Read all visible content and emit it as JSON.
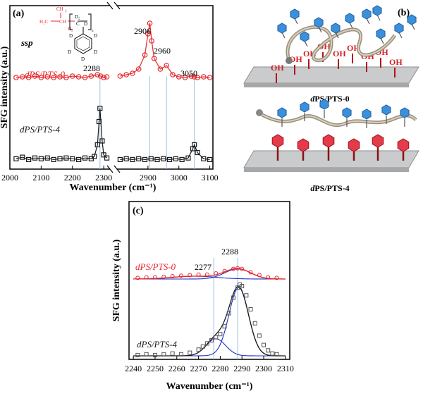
{
  "panel_labels": {
    "a": "(a)",
    "b": "(b)",
    "c": "(c)"
  },
  "colors": {
    "red": "#e8262b",
    "black": "#1a1a1a",
    "blue_line": "#9ec2e3",
    "fit_blue": "#1c2fbf"
  },
  "panel_a": {
    "polarization": "ssp",
    "series_top": "dPS/PTS-0",
    "series_bottom": "dPS/PTS-4",
    "peaks": [
      "2288",
      "2906",
      "2960",
      "3050"
    ]
  },
  "panel_b": {
    "caption_top": "dPS/PTS-0",
    "caption_bottom": "dPS/PTS-4",
    "oh_label": "OH"
  },
  "panel_c": {
    "series_top": "dPS/PTS-0",
    "series_bottom": "dPS/PTS-4",
    "peaks": [
      "2277",
      "2288"
    ]
  },
  "chart_data": [
    {
      "type": "line",
      "xlabel": "Wavenumber (cm⁻¹)",
      "ylabel": "SFG intensity (a.u.)",
      "x_ticks": [
        "2000",
        "2100",
        "2200",
        "2300",
        "2900",
        "3000",
        "3100"
      ],
      "xlim": [
        [
          2000,
          2320
        ],
        [
          2800,
          3110
        ]
      ],
      "series": [
        {
          "name": "dPS/PTS-0",
          "x": [
            2020,
            2040,
            2060,
            2080,
            2100,
            2120,
            2140,
            2160,
            2180,
            2200,
            2220,
            2240,
            2260,
            2280,
            2290,
            2300,
            2310,
            2810,
            2830,
            2850,
            2870,
            2890,
            2900,
            2906,
            2912,
            2920,
            2940,
            2960,
            2980,
            3000,
            3020,
            3040,
            3050,
            3060,
            3080,
            3100
          ],
          "y": [
            0.08,
            0.09,
            0.08,
            0.1,
            0.08,
            0.09,
            0.08,
            0.09,
            0.08,
            0.1,
            0.09,
            0.08,
            0.1,
            0.12,
            0.1,
            0.08,
            0.09,
            0.1,
            0.12,
            0.14,
            0.2,
            0.4,
            0.7,
            0.85,
            0.6,
            0.35,
            0.2,
            0.25,
            0.12,
            0.09,
            0.08,
            0.1,
            0.09,
            0.08,
            0.09,
            0.08
          ]
        },
        {
          "name": "dPS/PTS-4",
          "x": [
            2020,
            2040,
            2060,
            2080,
            2100,
            2120,
            2140,
            2160,
            2180,
            2200,
            2220,
            2240,
            2260,
            2270,
            2280,
            2285,
            2288,
            2295,
            2300,
            2310,
            2810,
            2830,
            2850,
            2870,
            2890,
            2910,
            2930,
            2950,
            2970,
            2990,
            3010,
            3030,
            3045,
            3050,
            3060,
            3080,
            3100
          ],
          "y": [
            0.07,
            0.09,
            0.06,
            0.08,
            0.07,
            0.08,
            0.06,
            0.07,
            0.08,
            0.07,
            0.06,
            0.08,
            0.07,
            0.1,
            0.25,
            0.55,
            0.72,
            0.3,
            0.12,
            0.08,
            0.06,
            0.07,
            0.06,
            0.07,
            0.06,
            0.07,
            0.06,
            0.07,
            0.06,
            0.07,
            0.06,
            0.08,
            0.2,
            0.25,
            0.15,
            0.07,
            0.06
          ]
        }
      ]
    },
    {
      "type": "line",
      "xlabel": "Wavenumber (cm⁻¹)",
      "ylabel": "SFG intensity (a.u.)",
      "x_ticks": [
        "2240",
        "2250",
        "2260",
        "2270",
        "2280",
        "2290",
        "2300",
        "2310"
      ],
      "xlim": [
        2238,
        2312
      ],
      "series": [
        {
          "name": "dPS/PTS-0",
          "x": [
            2242,
            2246,
            2250,
            2254,
            2258,
            2262,
            2266,
            2270,
            2274,
            2278,
            2282,
            2286,
            2288,
            2290,
            2294,
            2298,
            2302,
            2306
          ],
          "y": [
            0.02,
            0.03,
            0.03,
            0.04,
            0.05,
            0.06,
            0.07,
            0.08,
            0.08,
            0.1,
            0.14,
            0.18,
            0.19,
            0.18,
            0.12,
            0.07,
            0.03,
            0.02
          ]
        },
        {
          "name": "dPS/PTS-4",
          "x": [
            2242,
            2246,
            2250,
            2254,
            2258,
            2262,
            2266,
            2270,
            2272,
            2274,
            2276,
            2278,
            2280,
            2282,
            2284,
            2286,
            2288,
            2289,
            2290,
            2292,
            2294,
            2296,
            2298,
            2300,
            2302,
            2304,
            2306
          ],
          "y": [
            0.01,
            0.02,
            0.01,
            0.02,
            0.03,
            0.02,
            0.04,
            0.08,
            0.12,
            0.16,
            0.2,
            0.24,
            0.28,
            0.38,
            0.55,
            0.75,
            0.88,
            0.92,
            0.9,
            0.78,
            0.6,
            0.42,
            0.26,
            0.14,
            0.07,
            0.03,
            0.02
          ]
        }
      ],
      "fit_peaks": [
        {
          "center": 2277
        },
        {
          "center": 2288
        }
      ]
    }
  ]
}
